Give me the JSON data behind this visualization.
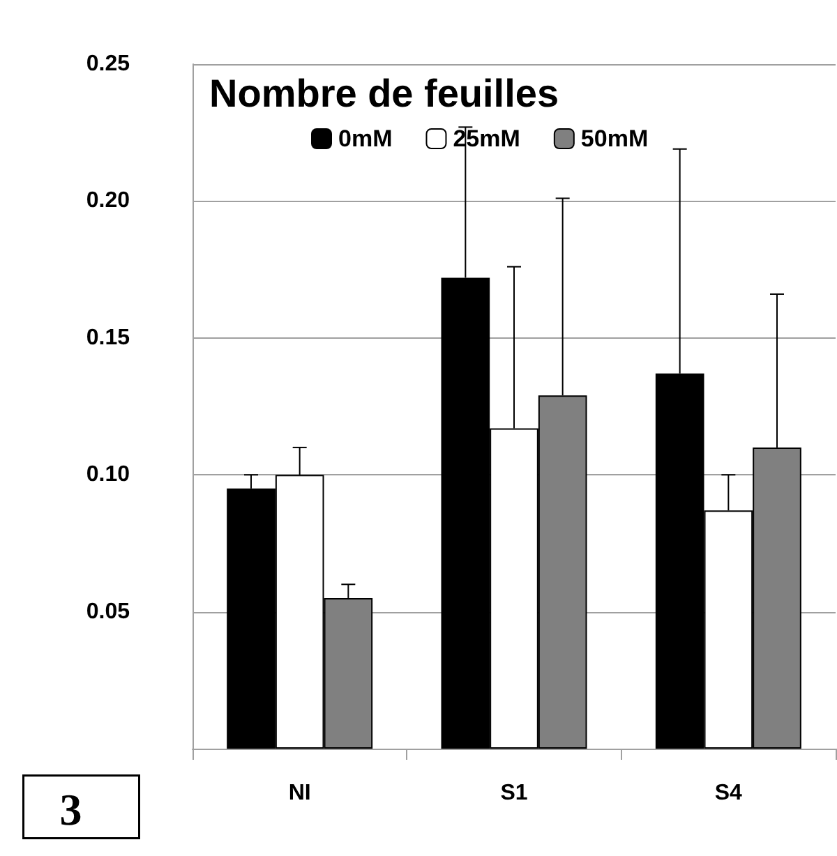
{
  "chart_data": {
    "type": "bar",
    "title": "Nombre de feuilles",
    "categories": [
      "NI",
      "S1",
      "S4"
    ],
    "series": [
      {
        "name": "0mM",
        "color": "#000000",
        "values": [
          0.095,
          0.172,
          0.137
        ],
        "errors": [
          [
            0.095,
            0.1
          ],
          [
            0.172,
            0.227
          ],
          [
            0.137,
            0.219
          ]
        ]
      },
      {
        "name": "25mM",
        "color": "#ffffff",
        "values": [
          0.1,
          0.117,
          0.087
        ],
        "errors": [
          [
            0.1,
            0.11
          ],
          [
            0.117,
            0.176
          ],
          [
            0.087,
            0.1
          ]
        ]
      },
      {
        "name": "50mM",
        "color": "#808080",
        "values": [
          0.055,
          0.129,
          0.11
        ],
        "errors": [
          [
            0.055,
            0.06
          ],
          [
            0.129,
            0.201
          ],
          [
            0.11,
            0.166
          ]
        ]
      }
    ],
    "ylim": [
      0,
      0.25
    ],
    "yticks": [
      {
        "value": 0,
        "label": null
      },
      {
        "value": 0.05,
        "label": "0.05"
      },
      {
        "value": 0.1,
        "label": "0.10"
      },
      {
        "value": 0.15,
        "label": "0.15"
      },
      {
        "value": 0.2,
        "label": "0.20"
      },
      {
        "value": 0.25,
        "label": "0.25"
      }
    ],
    "grid": "y",
    "legend": "top",
    "annotations": [
      "3"
    ]
  }
}
